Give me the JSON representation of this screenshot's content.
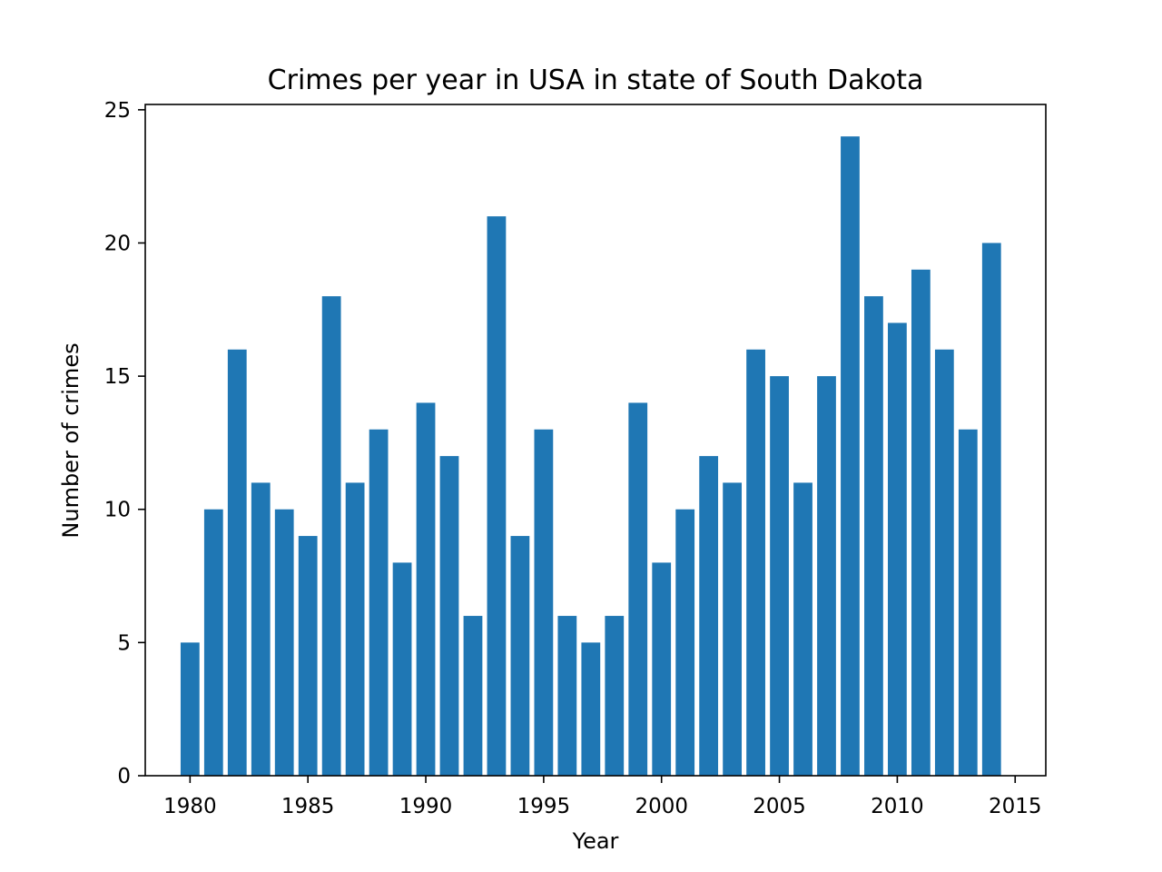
{
  "chart_data": {
    "type": "bar",
    "title": "Crimes per year in USA in state of South Dakota",
    "xlabel": "Year",
    "ylabel": "Number of crimes",
    "x": [
      1980,
      1981,
      1982,
      1983,
      1984,
      1985,
      1986,
      1987,
      1988,
      1989,
      1990,
      1991,
      1992,
      1993,
      1994,
      1995,
      1996,
      1997,
      1998,
      1999,
      2000,
      2001,
      2002,
      2003,
      2004,
      2005,
      2006,
      2007,
      2008,
      2009,
      2010,
      2011,
      2012,
      2013,
      2014
    ],
    "values": [
      5,
      10,
      16,
      11,
      10,
      9,
      18,
      11,
      13,
      8,
      14,
      12,
      6,
      21,
      9,
      13,
      6,
      5,
      6,
      14,
      8,
      10,
      12,
      11,
      16,
      15,
      11,
      15,
      24,
      18,
      17,
      19,
      16,
      13,
      20
    ],
    "xlim": [
      1978.1,
      2016.3
    ],
    "ylim": [
      0,
      25.2
    ],
    "xticks": [
      1980,
      1985,
      1990,
      1995,
      2000,
      2005,
      2010,
      2015
    ],
    "yticks": [
      0,
      5,
      10,
      15,
      20,
      25
    ],
    "bar_color": "#1f77b4",
    "grid": false,
    "legend": "none"
  }
}
